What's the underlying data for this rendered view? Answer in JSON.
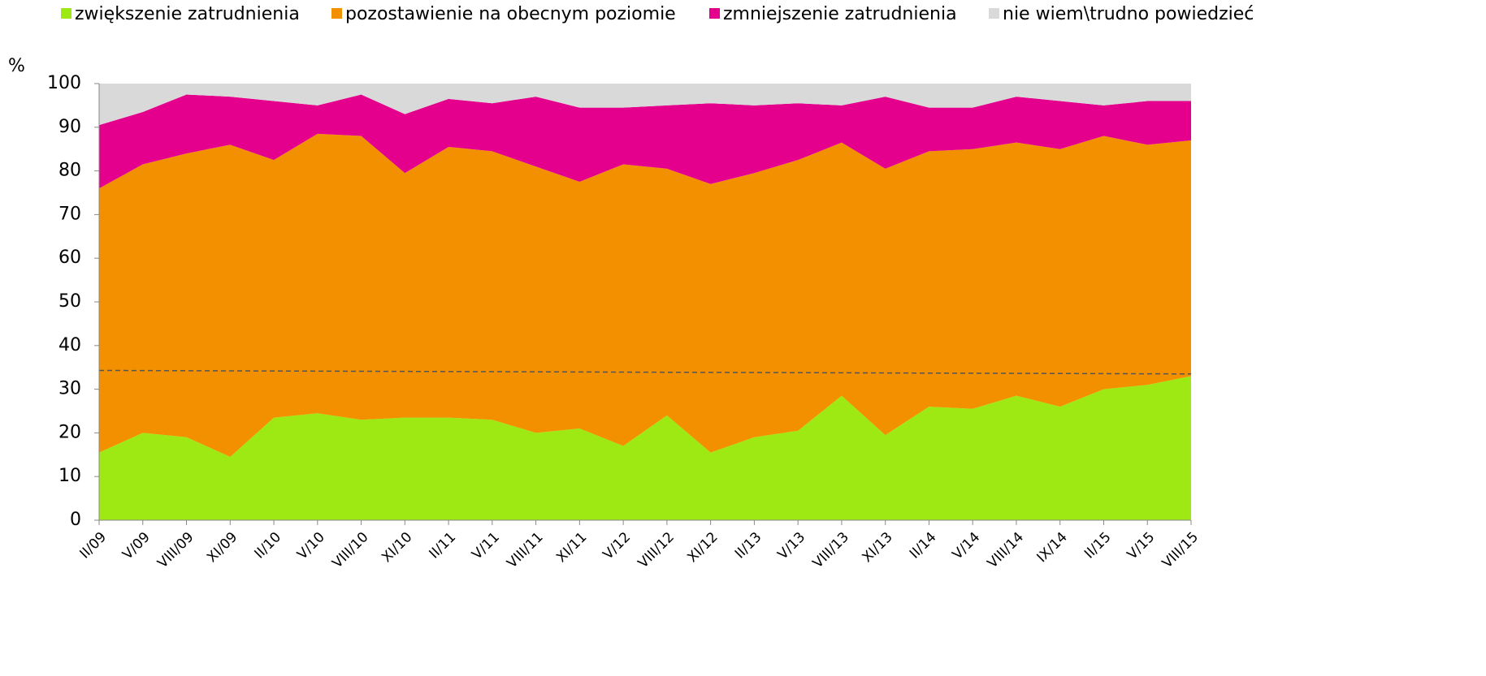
{
  "chart_data": {
    "type": "stacked_area",
    "ylabel": "%",
    "categories": [
      "II/09",
      "V/09",
      "VIII/09",
      "XI/09",
      "II/10",
      "V/10",
      "VIII/10",
      "XI/10",
      "II/11",
      "V/11",
      "VIII/11",
      "XI/11",
      "V/12",
      "VIII/12",
      "XI/12",
      "II/13",
      "V/13",
      "VIII/13",
      "XI/13",
      "II/14",
      "V/14",
      "VIII/14",
      "IX/14",
      "II/15",
      "V/15",
      "VIII/15"
    ],
    "series": [
      {
        "name": "zwiększenie zatrudnienia",
        "color": "#9ee813",
        "values": [
          15.5,
          20,
          19,
          14.5,
          23.5,
          24.5,
          23,
          23.5,
          23.5,
          23,
          20,
          21,
          17,
          24,
          15.5,
          19,
          20.5,
          28.5,
          19.5,
          26,
          25.5,
          28.5,
          26,
          30,
          31,
          33
        ]
      },
      {
        "name": "pozostawienie na obecnym poziomie",
        "color": "#f39000",
        "values": [
          60.5,
          61.5,
          65,
          71.5,
          59,
          64,
          65,
          56,
          62,
          61.5,
          61,
          56.5,
          64.5,
          56.5,
          61.5,
          60.5,
          62,
          58,
          61,
          58.5,
          59.5,
          58,
          59,
          58,
          55,
          54
        ]
      },
      {
        "name": "zmniejszenie zatrudnienia",
        "color": "#e4008c",
        "values": [
          14.5,
          12,
          13.5,
          11,
          13.5,
          6.5,
          9.5,
          13.5,
          11,
          11,
          16,
          17,
          13,
          14.5,
          18.5,
          15.5,
          13,
          8.5,
          16.5,
          10,
          9.5,
          10.5,
          11,
          7,
          10,
          9
        ]
      },
      {
        "name": "nie wiem\\trudno powiedzieć",
        "color": "#d9d9d9",
        "values": [
          9.5,
          6.5,
          2.5,
          3,
          4,
          5,
          2.5,
          7,
          3.5,
          4.5,
          3,
          5.5,
          5.5,
          5,
          4.5,
          5,
          4.5,
          5,
          3,
          5.5,
          5.5,
          3,
          4,
          5,
          4,
          4
        ]
      }
    ],
    "trendline": {
      "color": "#555555",
      "values": [
        34.3,
        33.5
      ]
    },
    "ylim": [
      0,
      100
    ],
    "yticks": [
      0,
      10,
      20,
      30,
      40,
      50,
      60,
      70,
      80,
      90,
      100
    ]
  }
}
